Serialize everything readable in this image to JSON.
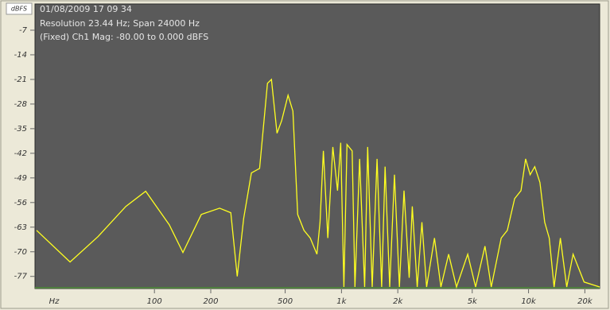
{
  "chart_data": {
    "type": "line",
    "header": [
      "01/08/2009 17 09 34",
      "Resolution 23.44 Hz; Span 24000 Hz",
      "(Fixed) Ch1 Mag: -80.00 to 0.000 dBFS"
    ],
    "y_label": "dBFS",
    "x_label": "Hz",
    "log_x": true,
    "grid": false,
    "color": "#ffff20",
    "xlim": [
      23.44,
      24000
    ],
    "ylim": [
      -80,
      0
    ],
    "yticks": [
      -7,
      -14,
      -21,
      -28,
      -35,
      -42,
      -49,
      -56,
      -63,
      -70,
      -77
    ],
    "xticks": [
      100,
      200,
      500,
      {
        "value": 1000,
        "label": "1k"
      },
      {
        "value": 2000,
        "label": "2k"
      },
      {
        "value": 5000,
        "label": "5k"
      },
      {
        "value": 10000,
        "label": "10k"
      },
      {
        "value": 20000,
        "label": "20k"
      }
    ],
    "x": [
      23.44,
      35.4,
      49.9,
      70.3,
      89.8,
      120,
      142,
      178,
      223,
      256,
      277,
      300,
      330,
      365,
      402,
      422,
      452,
      479,
      518,
      550,
      583,
      630,
      681,
      739,
      768,
      800,
      845,
      899,
      952,
      990,
      1030,
      1070,
      1140,
      1180,
      1250,
      1330,
      1380,
      1460,
      1550,
      1640,
      1710,
      1810,
      1920,
      2040,
      2160,
      2300,
      2390,
      2540,
      2690,
      2850,
      3140,
      3400,
      3740,
      4120,
      4730,
      5210,
      5850,
      6320,
      7140,
      7700,
      8430,
      9110,
      9650,
      10200,
      10800,
      11500,
      12200,
      12900,
      13700,
      14800,
      16000,
      17300,
      18700,
      19800,
      24000
    ],
    "values": [
      -63.9,
      -72.9,
      -65.7,
      -57.1,
      -52.8,
      -62.3,
      -70.2,
      -59.4,
      -57.6,
      -58.9,
      -77,
      -60.5,
      -47.6,
      -46.3,
      -22.1,
      -21,
      -36.3,
      -32.7,
      -25.5,
      -30,
      -59.4,
      -63.9,
      -66.1,
      -70.7,
      -61.6,
      -41.3,
      -66.1,
      -40.2,
      -52.6,
      -39,
      -80,
      -39.5,
      -41.3,
      -80,
      -43.6,
      -80,
      -40.2,
      -80,
      -43.6,
      -80,
      -45.8,
      -80,
      -48.1,
      -80,
      -52.6,
      -77.4,
      -57.1,
      -80,
      -61.6,
      -80,
      -66.1,
      -80,
      -70.7,
      -80,
      -70.7,
      -80,
      -68.4,
      -80,
      -66.1,
      -63.9,
      -54.9,
      -52.6,
      -43.6,
      -48.1,
      -45.8,
      -50.3,
      -61.6,
      -66.1,
      -80,
      -66.1,
      -80,
      -70.7,
      -75.2,
      -78.6,
      -80
    ]
  }
}
